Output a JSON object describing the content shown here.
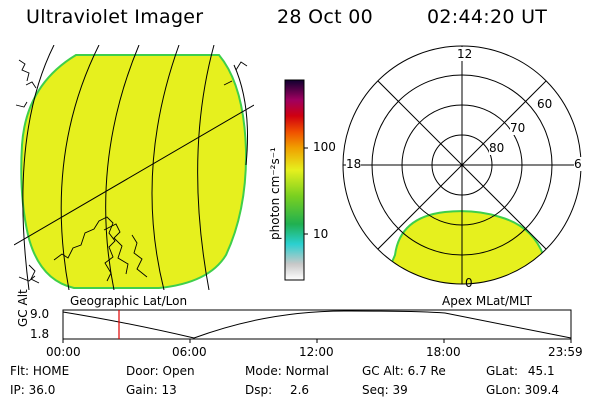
{
  "header": {
    "instrument": "Ultraviolet Imager",
    "date": "28 Oct 00",
    "time": "02:44:20 UT"
  },
  "colorbar": {
    "unit_label": "photon cm⁻²s⁻¹",
    "ticks": [
      "100",
      "10"
    ]
  },
  "geo_panel": {
    "label": "Geographic Lat/Lon"
  },
  "polar_panel": {
    "label": "Apex MLat/MLT",
    "mlt_labels": {
      "top": "12",
      "left": "18",
      "right": "6",
      "bottom": "0"
    },
    "lat_labels": [
      "60",
      "70",
      "80"
    ]
  },
  "altitude_plot": {
    "ylabel": "GC Alt",
    "ymax_label": "9.0",
    "ymin_label": "1.8",
    "x_ticks": [
      "00:00",
      "06:00",
      "12:00",
      "18:00",
      "23:59"
    ]
  },
  "status": {
    "flt_label": "Flt:",
    "flt_value": "HOME",
    "ip_label": "IP:",
    "ip_value": "36.0",
    "door_label": "Door:",
    "door_value": "Open",
    "gain_label": "Gain:",
    "gain_value": "13",
    "mode_label": "Mode:",
    "mode_value": "Normal",
    "dsp_label": "Dsp:",
    "dsp_value": "2.6",
    "gcalt_label": "GC Alt:",
    "gcalt_value": "6.7 Re",
    "seq_label": "Seq:",
    "seq_value": "39",
    "glat_label": "GLat:",
    "glat_value": "45.1",
    "glon_label": "GLon:",
    "glon_value": "309.4"
  },
  "colors": {
    "emission": "#e6f01e",
    "emission_edge": "#3fcf4a",
    "marker": "#e00000"
  }
}
